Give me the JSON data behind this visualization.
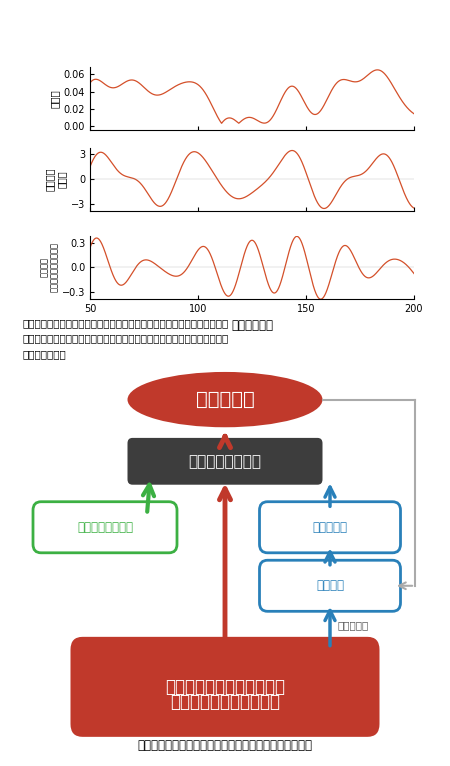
{
  "title_caption": "地球システム変動の一部としての地磁気変動（モデル）",
  "description": "地磁気伏角（図中）と強度（図下）の変動に含まれる１０万年周期の成分\n（バンドパスフィルターで抜出）．地球軌道離心率の変化（図上）と同様\nの周期を持つ．",
  "plot_color": "#d4502a",
  "bg_color": "#ffffff",
  "xlim": [
    50,
    200
  ],
  "xticks": [
    50,
    100,
    150,
    200
  ],
  "plot1": {
    "ylabel": "離心率",
    "ylim": [
      -0.005,
      0.068
    ],
    "yticks": [
      0,
      0.02,
      0.04,
      0.06
    ]
  },
  "plot2": {
    "ylabel": "伏角変化\n（度）",
    "ylim": [
      -3.8,
      3.8
    ],
    "yticks": [
      -3,
      0,
      3
    ]
  },
  "plot3": {
    "ylabel": "強度変化\n（平均に対する割合）",
    "ylim": [
      -0.38,
      0.38
    ],
    "yticks": [
      -0.3,
      0,
      0.3
    ],
    "xlabel": "年代（万年）"
  },
  "diagram": {
    "node_jiki": "地磁気変動",
    "node_jiki_color": "#c0392b",
    "node_jiki_text_color": "#ffffff",
    "node_kaku": "核・マントル結合",
    "node_kaku_color": "#3d3d3d",
    "node_kaku_text_color": "#ffffff",
    "node_super": "スーパープルーム",
    "node_super_color": "#ffffff",
    "node_super_border": "#3cb043",
    "node_super_text_color": "#3cb043",
    "node_hyosho": "氷床量変動",
    "node_hyosho_color": "#ffffff",
    "node_hyosho_border": "#2980b9",
    "node_hyosho_text_color": "#2980b9",
    "node_kiko": "気候変動",
    "node_kiko_color": "#ffffff",
    "node_kiko_border": "#2980b9",
    "node_kiko_text_color": "#2980b9",
    "node_orbit_line1": "地球軌道パラメータの変動",
    "node_orbit_line2": "（ミランコビッチ周期）",
    "node_orbit_color": "#c0392b",
    "node_orbit_text_color": "#ffffff",
    "node_nissya": "日射量変化",
    "node_nissya_text_color": "#555555",
    "arrow_red": "#c0392b",
    "arrow_blue": "#2980b9",
    "arrow_green": "#3cb043",
    "arrow_gray": "#aaaaaa"
  }
}
